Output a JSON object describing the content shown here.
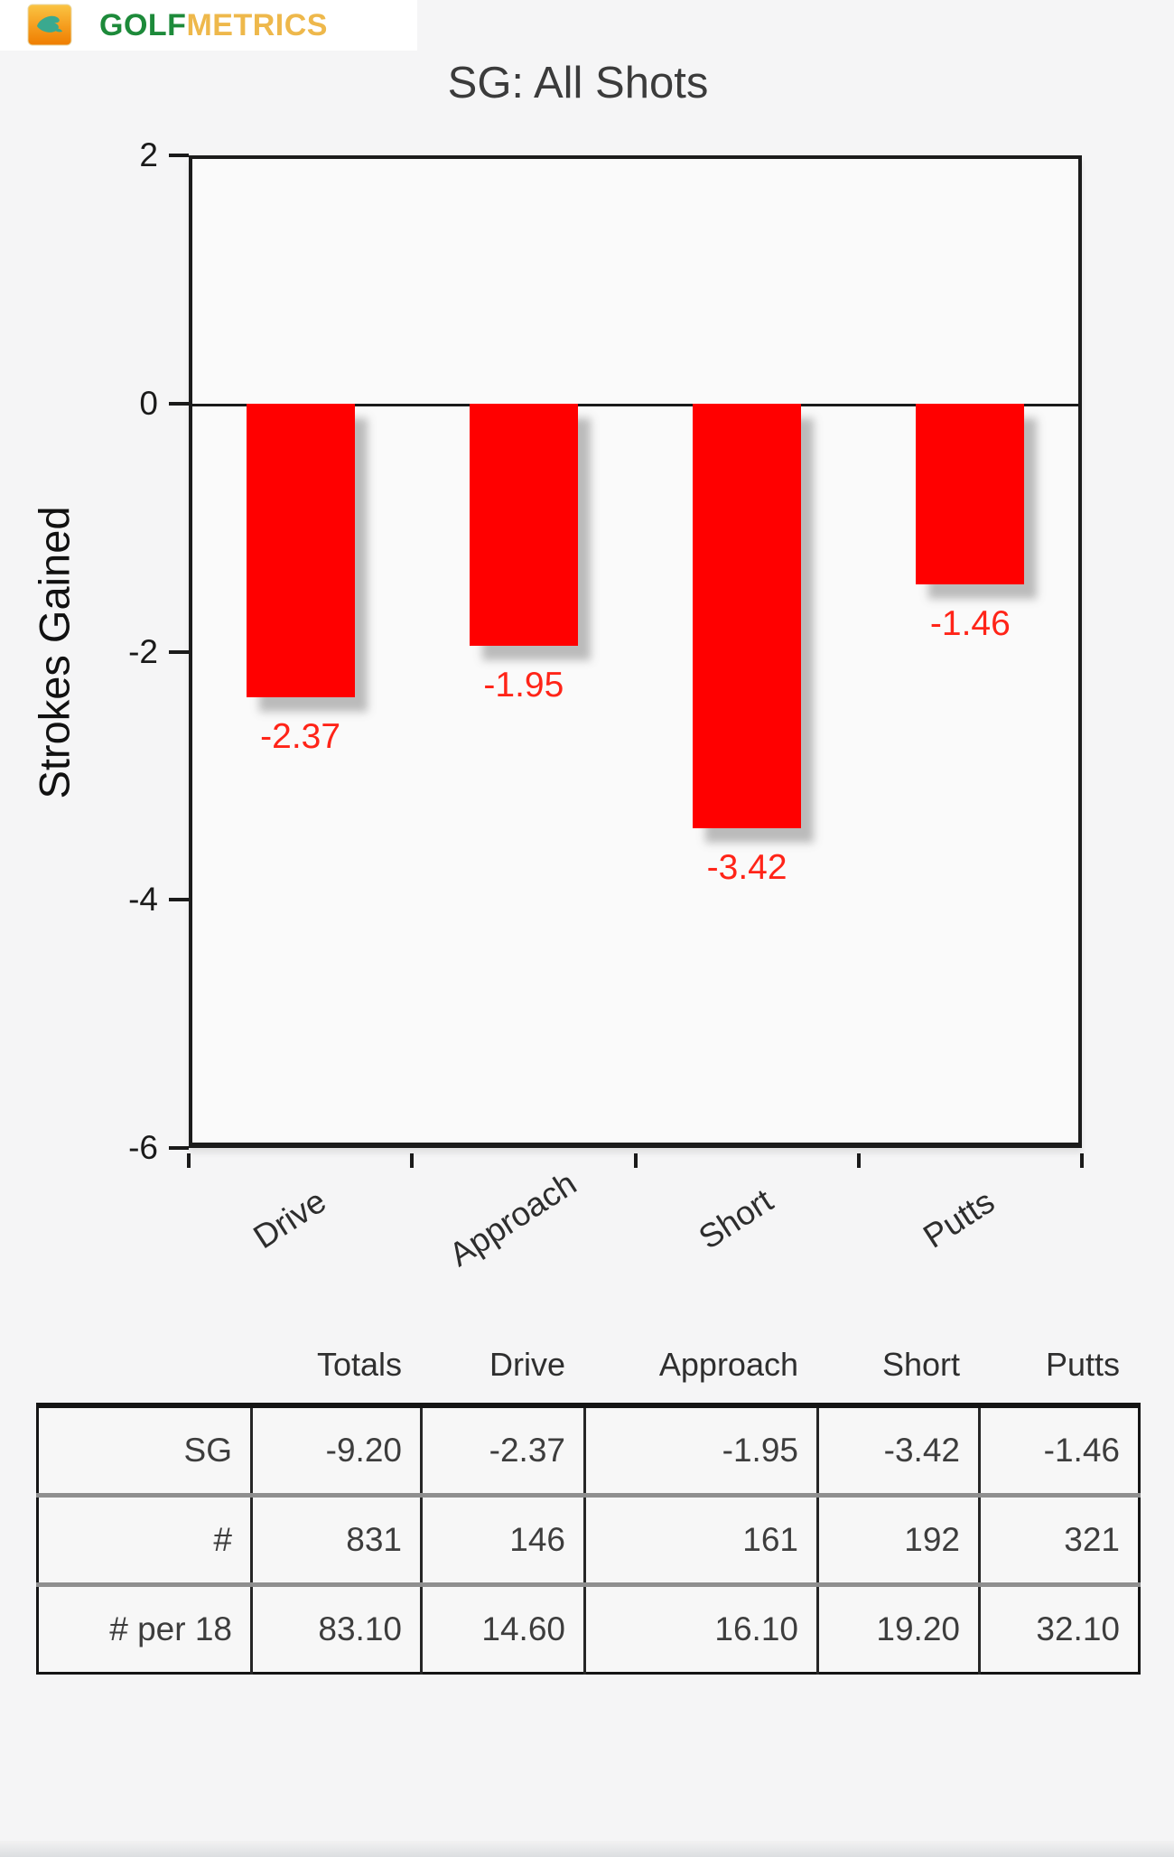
{
  "header": {
    "logo_golf": "GOLF",
    "logo_metrics": "METRICS"
  },
  "chart_data": {
    "type": "bar",
    "title": "SG: All Shots",
    "ylabel": "Strokes Gained",
    "xlabel": "",
    "categories": [
      "Drive",
      "Approach",
      "Short",
      "Putts"
    ],
    "values": [
      -2.37,
      -1.95,
      -3.42,
      -1.46
    ],
    "bar_labels": [
      "-2.37",
      "-1.95",
      "-3.42",
      "-1.46"
    ],
    "ylim": [
      -6,
      2
    ],
    "yticks": [
      2,
      0,
      -2,
      -4,
      -6
    ],
    "ytick_labels": [
      "2",
      "0",
      "-2",
      "-4",
      "-6"
    ],
    "grid": false,
    "legend": "none",
    "bar_color": "#ff0000",
    "bar_label_color": "#ff2418"
  },
  "table": {
    "column_headers": [
      "Totals",
      "Drive",
      "Approach",
      "Short",
      "Putts"
    ],
    "rows": [
      {
        "label": "SG",
        "values": [
          "-9.20",
          "-2.37",
          "-1.95",
          "-3.42",
          "-1.46"
        ]
      },
      {
        "label": "#",
        "values": [
          "831",
          "146",
          "161",
          "192",
          "321"
        ]
      },
      {
        "label": "# per 18",
        "values": [
          "83.10",
          "14.60",
          "16.10",
          "19.20",
          "32.10"
        ]
      }
    ]
  }
}
